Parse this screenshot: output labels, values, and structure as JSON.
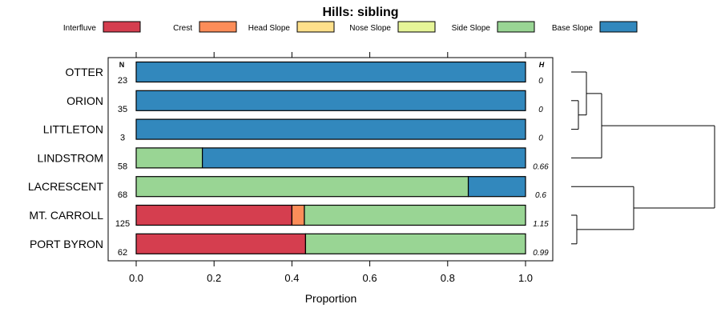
{
  "chart_data": {
    "type": "bar",
    "subtype": "stacked-horizontal-proportion",
    "title": "Hills: sibling",
    "xlabel": "Proportion",
    "xlim": [
      0,
      1
    ],
    "xticks": [
      "0.0",
      "0.2",
      "0.4",
      "0.6",
      "0.8",
      "1.0"
    ],
    "n_header": "N",
    "h_header": "H",
    "legend": [
      {
        "name": "Interfluve",
        "color": "#D53E4F"
      },
      {
        "name": "Crest",
        "color": "#FC8D59"
      },
      {
        "name": "Head Slope",
        "color": "#FEE08B"
      },
      {
        "name": "Nose Slope",
        "color": "#E6F598"
      },
      {
        "name": "Side Slope",
        "color": "#99D594"
      },
      {
        "name": "Base Slope",
        "color": "#3288BD"
      }
    ],
    "rows": [
      {
        "label": "OTTER",
        "n": "23",
        "h": "0",
        "values": [
          0,
          0,
          0,
          0,
          0,
          1
        ]
      },
      {
        "label": "ORION",
        "n": "35",
        "h": "0",
        "values": [
          0,
          0,
          0,
          0,
          0,
          1
        ]
      },
      {
        "label": "LITTLETON",
        "n": "3",
        "h": "0",
        "values": [
          0,
          0,
          0,
          0,
          0,
          1
        ]
      },
      {
        "label": "LINDSTROM",
        "n": "58",
        "h": "0.66",
        "values": [
          0,
          0,
          0,
          0,
          0.17,
          0.83
        ]
      },
      {
        "label": "LACRESCENT",
        "n": "68",
        "h": "0.6",
        "values": [
          0,
          0,
          0,
          0,
          0.853,
          0.147
        ]
      },
      {
        "label": "MT. CARROLL",
        "n": "125",
        "h": "1.15",
        "values": [
          0.4,
          0.032,
          0,
          0,
          0.568,
          0
        ]
      },
      {
        "label": "PORT BYRON",
        "n": "62",
        "h": "0.99",
        "values": [
          0.435,
          0,
          0,
          0,
          0.565,
          0
        ]
      }
    ],
    "dendrogram": "((OTTER,(ORION,LITTLETON)),LINDSTROM),(LACRESCENT,(MT. CARROLL,PORT BYRON))"
  }
}
